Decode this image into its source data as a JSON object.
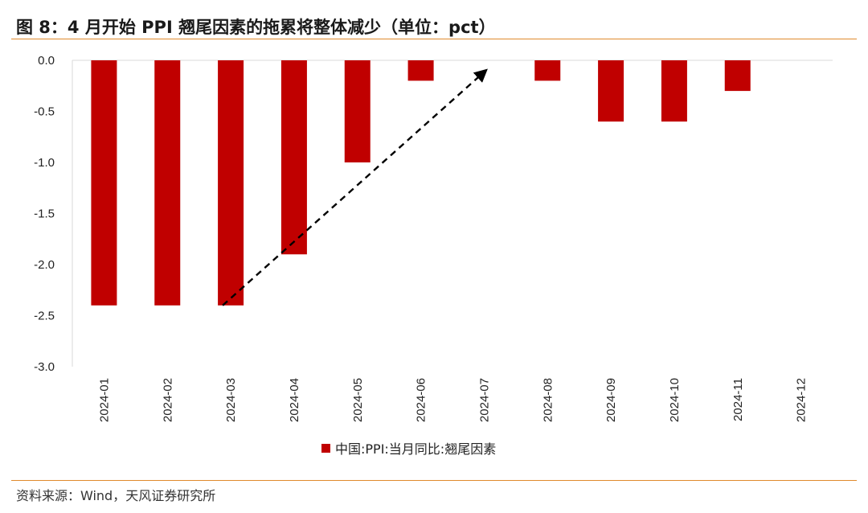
{
  "header": {
    "title": "图 8：4 月开始 PPI 翘尾因素的拖累将整体减少（单位：pct）"
  },
  "footer": {
    "source": "资料来源：Wind，天风证券研究所"
  },
  "chart_data": {
    "type": "bar",
    "categories": [
      "2024-01",
      "2024-02",
      "2024-03",
      "2024-04",
      "2024-05",
      "2024-06",
      "2024-07",
      "2024-08",
      "2024-09",
      "2024-10",
      "2024-11",
      "2024-12"
    ],
    "series": [
      {
        "name": "中国:PPI:当月同比:翘尾因素",
        "values": [
          -2.4,
          -2.4,
          -2.4,
          -1.9,
          -1.0,
          -0.2,
          0.0,
          -0.2,
          -0.6,
          -0.6,
          -0.3,
          0.0
        ],
        "color": "#c00000"
      }
    ],
    "yticks": [
      "0.0",
      "-0.5",
      "-1.0",
      "-1.5",
      "-2.0",
      "-2.5",
      "-3.0"
    ],
    "ylim": [
      -3.0,
      0.0
    ],
    "xlabel": "",
    "ylabel": "",
    "grid": false,
    "legend_position": "bottom",
    "annotations": [
      {
        "type": "dashed-arrow",
        "from": {
          "category": "2024-03",
          "value": -2.4
        },
        "to": {
          "category": "2024-07",
          "value": -0.1
        }
      }
    ]
  }
}
